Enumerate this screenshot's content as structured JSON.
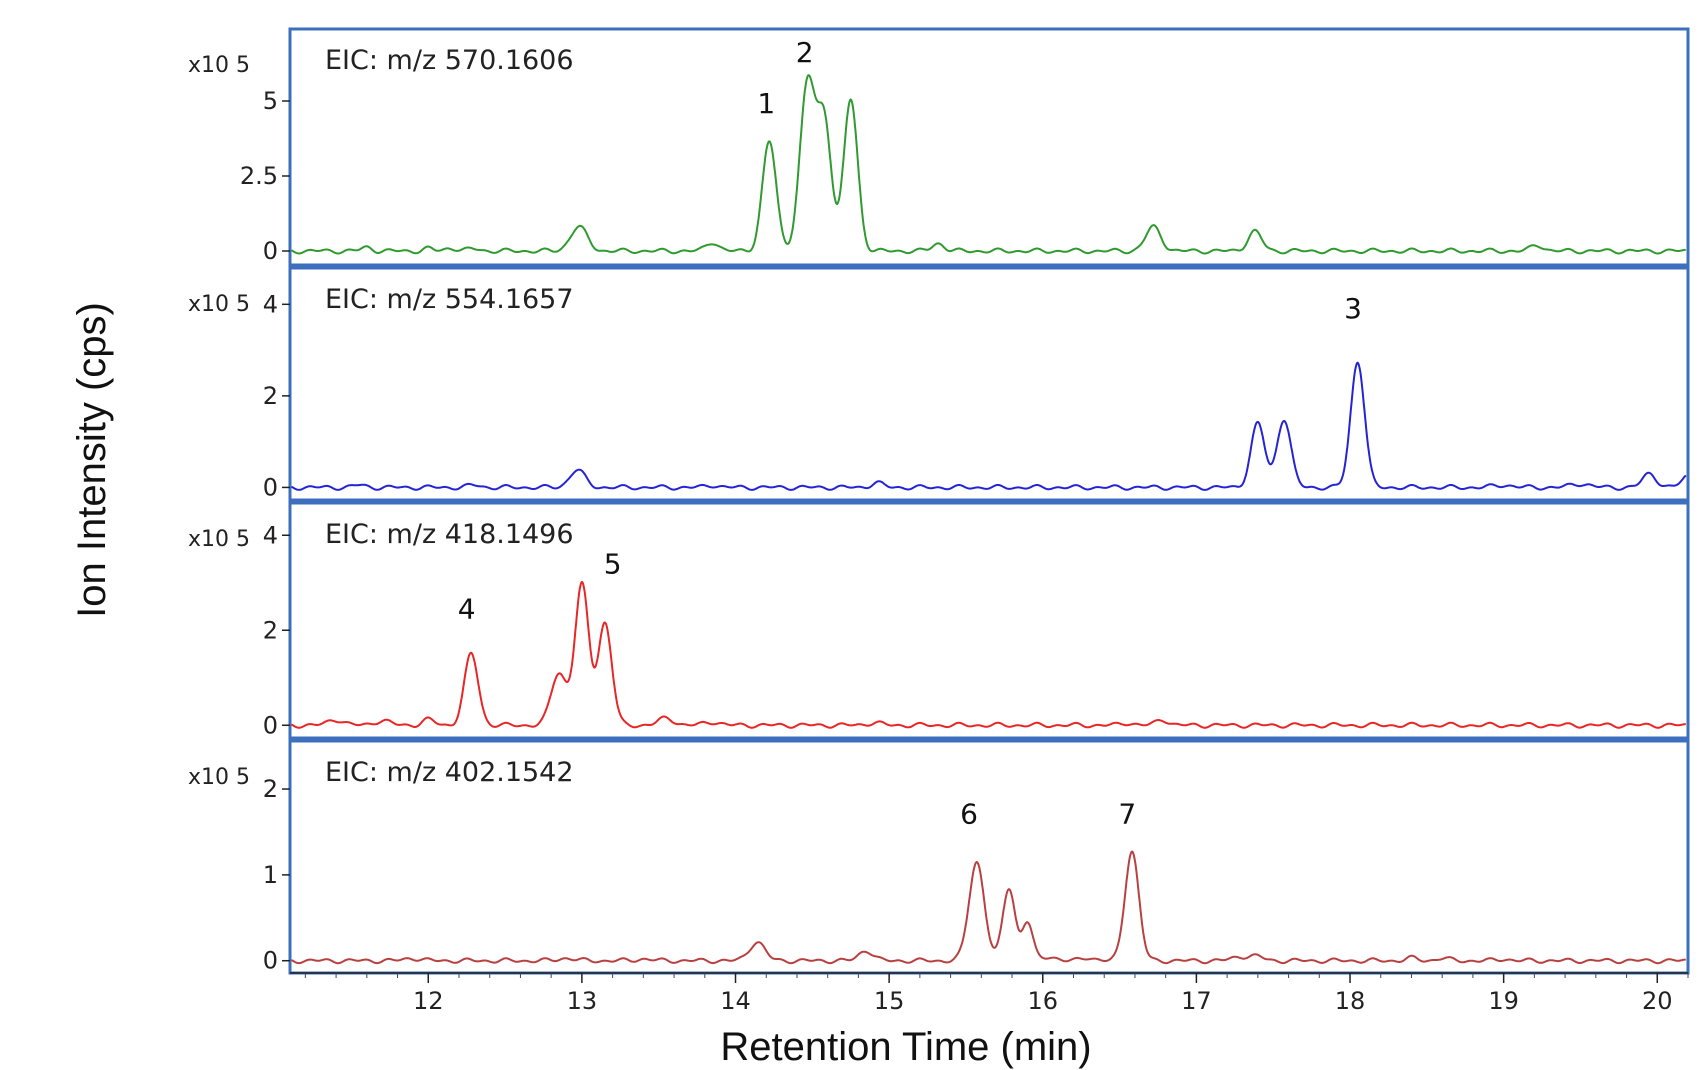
{
  "chart_data": {
    "type": "line",
    "xlabel": "Retention Time (min)",
    "ylabel": "Ion Intensity (cps)",
    "xlim": [
      11.1,
      20.2
    ],
    "x_ticks": [
      "12",
      "13",
      "14",
      "15",
      "16",
      "17",
      "18",
      "19",
      "20"
    ],
    "exponent_label": "x10 5",
    "panels": [
      {
        "label": "EIC: m/z 570.1606",
        "color": "#2f9a2f",
        "ylim": [
          -0.2,
          6.8
        ],
        "y_ticks": [
          "0",
          "2.5",
          "5"
        ],
        "peaks": [
          {
            "x": 11.6,
            "y": 0.12,
            "w": 0.035
          },
          {
            "x": 12.0,
            "y": 0.08,
            "w": 0.03
          },
          {
            "x": 12.15,
            "y": 0.1,
            "w": 0.04
          },
          {
            "x": 12.3,
            "y": 0.07,
            "w": 0.04
          },
          {
            "x": 12.98,
            "y": 0.8,
            "w": 0.055
          },
          {
            "x": 13.85,
            "y": 0.3,
            "w": 0.04
          },
          {
            "x": 14.22,
            "y": 3.65,
            "w": 0.045
          },
          {
            "x": 14.47,
            "y": 5.6,
            "w": 0.05
          },
          {
            "x": 14.58,
            "y": 4.2,
            "w": 0.045
          },
          {
            "x": 14.75,
            "y": 5.05,
            "w": 0.045
          },
          {
            "x": 15.32,
            "y": 0.25,
            "w": 0.04
          },
          {
            "x": 16.72,
            "y": 0.8,
            "w": 0.05
          },
          {
            "x": 17.38,
            "y": 0.65,
            "w": 0.045
          },
          {
            "x": 19.22,
            "y": 0.2,
            "w": 0.04
          }
        ],
        "annotations": [
          {
            "text": "1",
            "x": 14.2,
            "y": 4.6
          },
          {
            "text": "2",
            "x": 14.45,
            "y": 6.3
          }
        ]
      },
      {
        "label": "EIC: m/z 554.1657",
        "color": "#2424d6",
        "ylim": [
          -0.1,
          4.4
        ],
        "y_ticks": [
          "0",
          "2",
          "4"
        ],
        "peaks": [
          {
            "x": 11.55,
            "y": 0.05,
            "w": 0.04
          },
          {
            "x": 12.3,
            "y": 0.05,
            "w": 0.04
          },
          {
            "x": 12.97,
            "y": 0.38,
            "w": 0.05
          },
          {
            "x": 13.85,
            "y": 0.05,
            "w": 0.04
          },
          {
            "x": 14.92,
            "y": 0.1,
            "w": 0.04
          },
          {
            "x": 17.4,
            "y": 1.4,
            "w": 0.045
          },
          {
            "x": 17.57,
            "y": 1.5,
            "w": 0.045
          },
          {
            "x": 18.05,
            "y": 2.75,
            "w": 0.045
          },
          {
            "x": 19.0,
            "y": 0.05,
            "w": 0.06
          },
          {
            "x": 19.5,
            "y": 0.08,
            "w": 0.06
          },
          {
            "x": 19.95,
            "y": 0.3,
            "w": 0.045
          },
          {
            "x": 20.22,
            "y": 0.3,
            "w": 0.05
          }
        ],
        "annotations": [
          {
            "text": "3",
            "x": 18.02,
            "y": 3.7
          }
        ]
      },
      {
        "label": "EIC: m/z 418.1496",
        "color": "#e82626",
        "ylim": [
          -0.1,
          4.3
        ],
        "y_ticks": [
          "0",
          "2",
          "4"
        ],
        "peaks": [
          {
            "x": 11.4,
            "y": 0.12,
            "w": 0.05
          },
          {
            "x": 11.7,
            "y": 0.1,
            "w": 0.05
          },
          {
            "x": 12.0,
            "y": 0.12,
            "w": 0.04
          },
          {
            "x": 12.28,
            "y": 1.5,
            "w": 0.045
          },
          {
            "x": 12.85,
            "y": 1.1,
            "w": 0.05
          },
          {
            "x": 13.0,
            "y": 2.95,
            "w": 0.045
          },
          {
            "x": 13.15,
            "y": 2.15,
            "w": 0.045
          },
          {
            "x": 13.55,
            "y": 0.15,
            "w": 0.05
          },
          {
            "x": 13.85,
            "y": 0.07,
            "w": 0.05
          },
          {
            "x": 14.9,
            "y": 0.05,
            "w": 0.05
          },
          {
            "x": 16.55,
            "y": 0.05,
            "w": 0.04
          },
          {
            "x": 16.78,
            "y": 0.12,
            "w": 0.04
          }
        ],
        "annotations": [
          {
            "text": "4",
            "x": 12.25,
            "y": 2.25
          },
          {
            "text": "5",
            "x": 13.2,
            "y": 3.2
          }
        ]
      },
      {
        "label": "EIC: m/z 402.1542",
        "color": "#b84040",
        "ylim": [
          -0.05,
          2.35
        ],
        "y_ticks": [
          "0",
          "1",
          "2"
        ],
        "peaks": [
          {
            "x": 11.9,
            "y": 0.03,
            "w": 0.05
          },
          {
            "x": 12.9,
            "y": 0.03,
            "w": 0.05
          },
          {
            "x": 13.4,
            "y": 0.02,
            "w": 0.05
          },
          {
            "x": 14.14,
            "y": 0.22,
            "w": 0.05
          },
          {
            "x": 14.85,
            "y": 0.12,
            "w": 0.045
          },
          {
            "x": 15.57,
            "y": 1.15,
            "w": 0.05
          },
          {
            "x": 15.78,
            "y": 0.85,
            "w": 0.04
          },
          {
            "x": 15.9,
            "y": 0.45,
            "w": 0.035
          },
          {
            "x": 16.05,
            "y": 0.05,
            "w": 0.04
          },
          {
            "x": 16.3,
            "y": 0.04,
            "w": 0.04
          },
          {
            "x": 16.58,
            "y": 1.28,
            "w": 0.045
          },
          {
            "x": 17.3,
            "y": 0.05,
            "w": 0.06
          },
          {
            "x": 17.4,
            "y": 0.04,
            "w": 0.04
          },
          {
            "x": 18.4,
            "y": 0.03,
            "w": 0.04
          },
          {
            "x": 18.6,
            "y": 0.03,
            "w": 0.04
          },
          {
            "x": 19.0,
            "y": 0.02,
            "w": 0.04
          }
        ],
        "annotations": [
          {
            "text": "6",
            "x": 15.52,
            "y": 1.6
          },
          {
            "text": "7",
            "x": 16.55,
            "y": 1.6
          }
        ]
      }
    ]
  }
}
